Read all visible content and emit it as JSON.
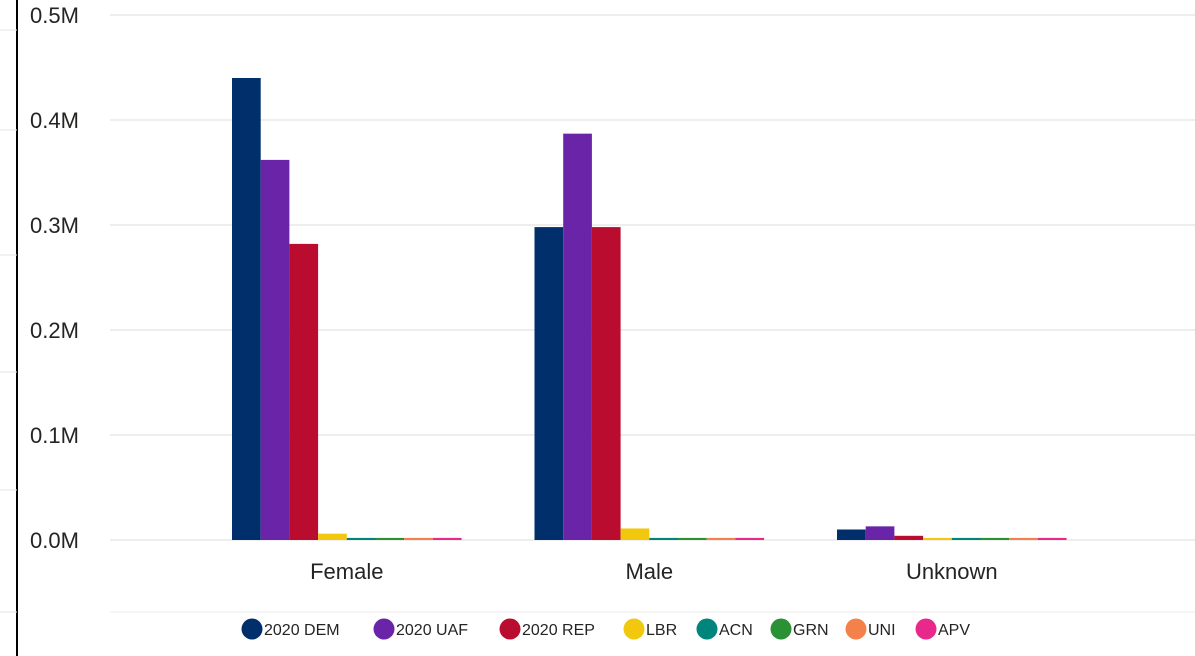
{
  "chart_data": {
    "type": "bar",
    "categories": [
      "Female",
      "Male",
      "Unknown"
    ],
    "series": [
      {
        "name": "2020 DEM",
        "color": "#002f6c",
        "values": [
          0.44,
          0.298,
          0.01
        ]
      },
      {
        "name": "2020 UAF",
        "color": "#6a24a8",
        "values": [
          0.362,
          0.387,
          0.013
        ]
      },
      {
        "name": "2020 REP",
        "color": "#ba0c2f",
        "values": [
          0.282,
          0.298,
          0.004
        ]
      },
      {
        "name": "LBR",
        "color": "#f2c80f",
        "values": [
          0.006,
          0.011,
          0.002
        ]
      },
      {
        "name": "ACN",
        "color": "#00857c",
        "values": [
          0.002,
          0.002,
          0.002
        ]
      },
      {
        "name": "GRN",
        "color": "#2a9134",
        "values": [
          0.002,
          0.002,
          0.002
        ]
      },
      {
        "name": "UNI",
        "color": "#f5814a",
        "values": [
          0.002,
          0.002,
          0.002
        ]
      },
      {
        "name": "APV",
        "color": "#e8288a",
        "values": [
          0.002,
          0.002,
          0.002
        ]
      }
    ],
    "y_ticks": [
      "0.0M",
      "0.1M",
      "0.2M",
      "0.3M",
      "0.4M",
      "0.5M"
    ],
    "ylim": [
      0,
      0.5
    ],
    "yunit": "M",
    "grid": true,
    "legend_position": "bottom"
  }
}
